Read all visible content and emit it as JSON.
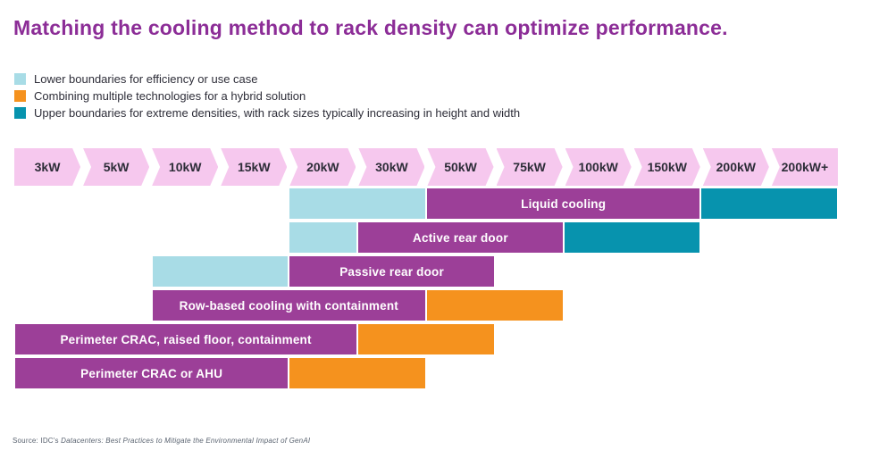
{
  "title": "Matching the cooling method to rack density can optimize performance.",
  "legend": [
    {
      "key": "lower",
      "label": "Lower boundaries for efficiency or use case",
      "color": "#a8dce6"
    },
    {
      "key": "hybrid",
      "label": "Combining multiple technologies for a hybrid solution",
      "color": "#f5921e"
    },
    {
      "key": "upper",
      "label": "Upper boundaries for extreme densities, with rack sizes typically increasing in height and width",
      "color": "#0793ae"
    }
  ],
  "source": {
    "prefix": "Source: IDC's ",
    "document": "Datacenters: Best Practices to Mitigate the Environmental Impact of GenAI"
  },
  "colors": {
    "primary": "#9c3f98",
    "lower": "#a8dce6",
    "upper": "#0793ae",
    "hybrid": "#f5921e",
    "header_bg": "#f6c8ee",
    "title": "#8c2d97",
    "text": "#2d2d38",
    "source": "#5a6370"
  },
  "chart_data": {
    "type": "bar",
    "orientation": "horizontal-range",
    "categories": [
      "3kW",
      "5kW",
      "10kW",
      "15kW",
      "20kW",
      "30kW",
      "50kW",
      "75kW",
      "100kW",
      "150kW",
      "200kW",
      "200kW+"
    ],
    "legend_position": "top-left",
    "grid": false,
    "rows": [
      {
        "name": "Liquid cooling",
        "segments": [
          {
            "role": "lower",
            "from": "20kW",
            "to": "50kW",
            "start": 4,
            "span": 2
          },
          {
            "role": "primary",
            "from": "50kW",
            "to": "200kW",
            "start": 6,
            "span": 4,
            "label": "Liquid cooling"
          },
          {
            "role": "upper",
            "from": "200kW",
            "to": "max",
            "start": 10,
            "span": 2
          }
        ]
      },
      {
        "name": "Active rear door",
        "segments": [
          {
            "role": "lower",
            "from": "20kW",
            "to": "30kW",
            "start": 4,
            "span": 1
          },
          {
            "role": "primary",
            "from": "30kW",
            "to": "100kW",
            "start": 5,
            "span": 3,
            "label": "Active rear door"
          },
          {
            "role": "upper",
            "from": "100kW",
            "to": "200kW",
            "start": 8,
            "span": 2
          }
        ]
      },
      {
        "name": "Passive rear door",
        "segments": [
          {
            "role": "lower",
            "from": "10kW",
            "to": "20kW",
            "start": 2,
            "span": 2
          },
          {
            "role": "primary",
            "from": "20kW",
            "to": "75kW",
            "start": 4,
            "span": 3,
            "label": "Passive rear door"
          }
        ]
      },
      {
        "name": "Row-based cooling with containment",
        "segments": [
          {
            "role": "primary",
            "from": "10kW",
            "to": "50kW",
            "start": 2,
            "span": 4,
            "label": "Row-based cooling with containment"
          },
          {
            "role": "hybrid",
            "from": "50kW",
            "to": "100kW",
            "start": 6,
            "span": 2
          }
        ]
      },
      {
        "name": "Perimeter CRAC, raised floor, containment",
        "segments": [
          {
            "role": "primary",
            "from": "3kW",
            "to": "30kW",
            "start": 0,
            "span": 5,
            "label": "Perimeter CRAC, raised floor, containment"
          },
          {
            "role": "hybrid",
            "from": "30kW",
            "to": "75kW",
            "start": 5,
            "span": 2
          }
        ]
      },
      {
        "name": "Perimeter CRAC or AHU",
        "segments": [
          {
            "role": "primary",
            "from": "3kW",
            "to": "20kW",
            "start": 0,
            "span": 4,
            "label": "Perimeter CRAC or AHU"
          },
          {
            "role": "hybrid",
            "from": "20kW",
            "to": "50kW",
            "start": 4,
            "span": 2
          }
        ]
      }
    ]
  }
}
